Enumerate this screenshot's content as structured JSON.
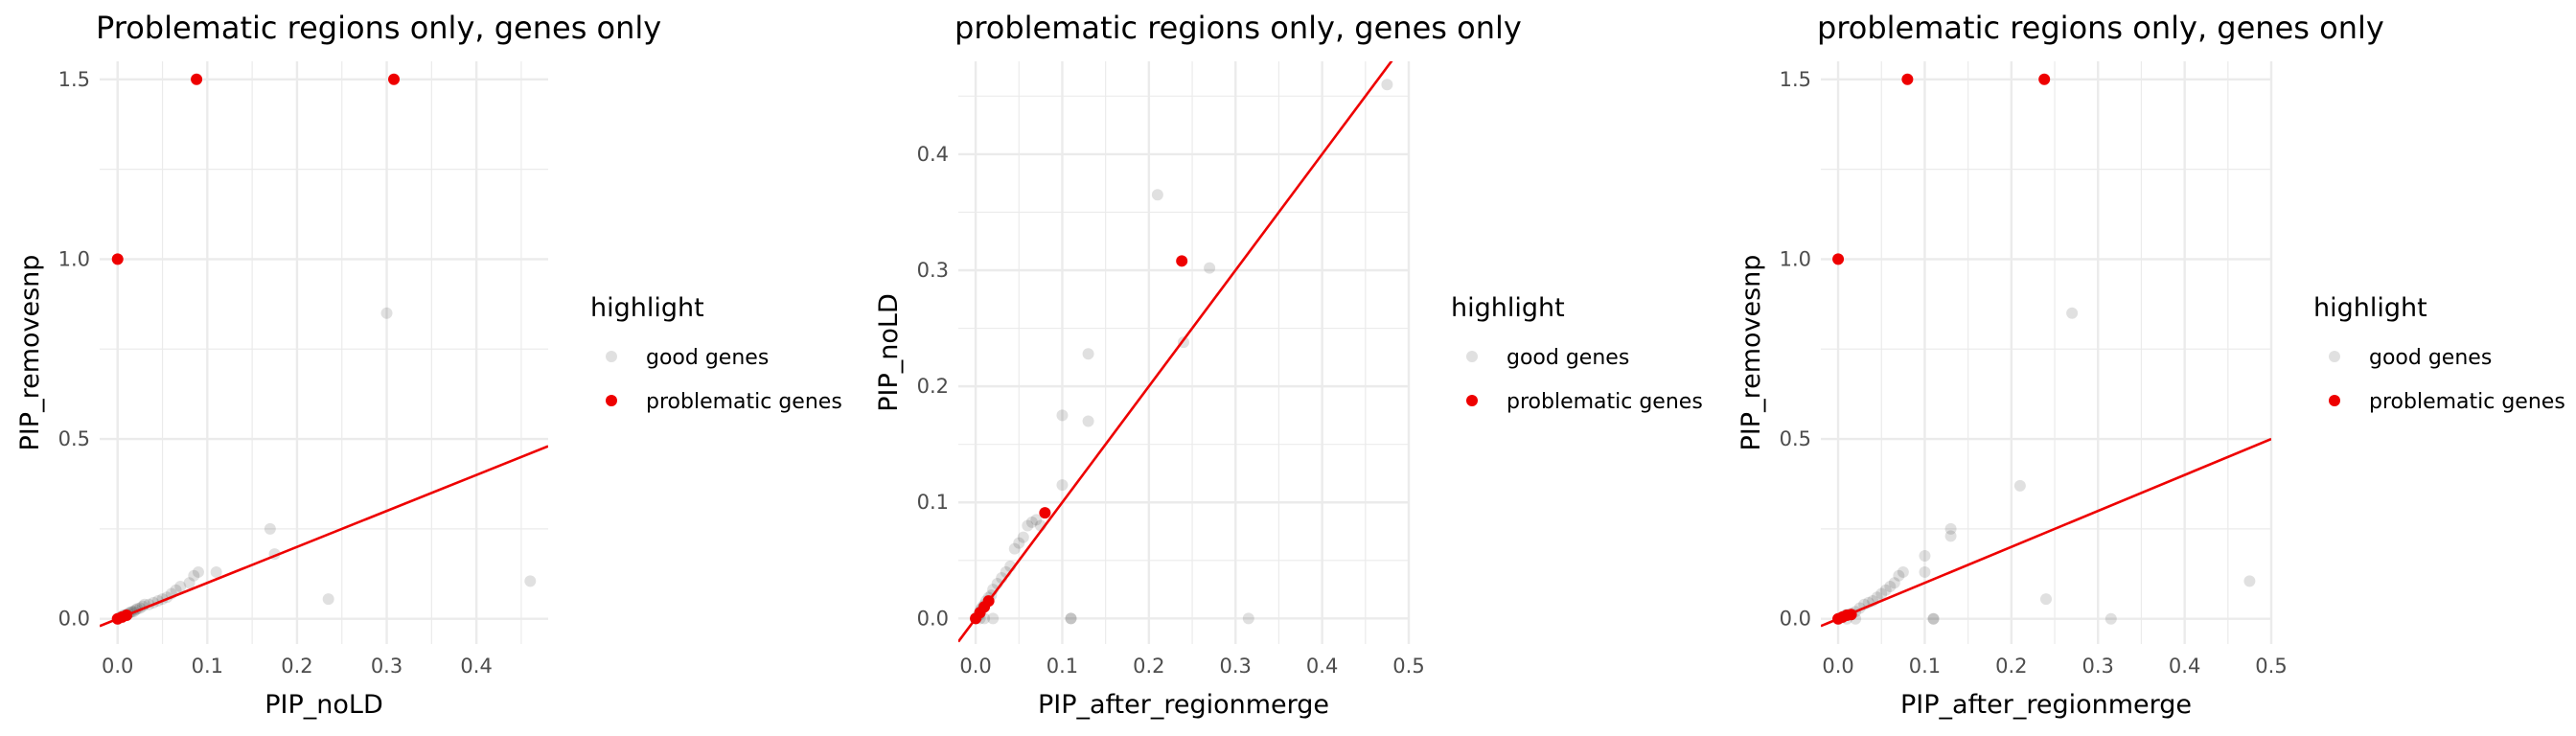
{
  "colors": {
    "good_genes": "#000000",
    "problematic_genes": "#ee0000",
    "reference_line": "#ee0000",
    "grid": "#ebebeb"
  },
  "chart_data": [
    {
      "type": "scatter",
      "title": "Problematic regions only, genes only",
      "xlabel": "PIP_noLD",
      "ylabel": "PIP_removesnp",
      "xlim": [
        -0.02,
        0.48
      ],
      "ylim": [
        -0.07,
        1.55
      ],
      "x_ticks": [
        0.0,
        0.1,
        0.2,
        0.3,
        0.4
      ],
      "y_ticks": [
        0.0,
        0.5,
        1.0,
        1.5
      ],
      "x_tick_labels": [
        "0.0",
        "0.1",
        "0.2",
        "0.3",
        "0.4"
      ],
      "y_tick_labels": [
        "0.0",
        "0.5",
        "1.0",
        "1.5"
      ],
      "grid": true,
      "legend": {
        "title": "highlight",
        "placement": "right",
        "items": [
          {
            "label": "good genes",
            "color": "#000000",
            "alpha": 0.12
          },
          {
            "label": "problematic genes",
            "color": "#ee0000",
            "alpha": 1
          }
        ]
      },
      "reference_line": {
        "slope": 1,
        "intercept": 0
      },
      "series": [
        {
          "name": "good genes",
          "points": [
            [
              0.0,
              0.0
            ],
            [
              0.002,
              0.003
            ],
            [
              0.004,
              0.005
            ],
            [
              0.006,
              0.01
            ],
            [
              0.008,
              0.01
            ],
            [
              0.01,
              0.012
            ],
            [
              0.012,
              0.015
            ],
            [
              0.014,
              0.018
            ],
            [
              0.016,
              0.02
            ],
            [
              0.018,
              0.02
            ],
            [
              0.02,
              0.025
            ],
            [
              0.022,
              0.028
            ],
            [
              0.025,
              0.03
            ],
            [
              0.028,
              0.035
            ],
            [
              0.03,
              0.04
            ],
            [
              0.035,
              0.04
            ],
            [
              0.04,
              0.045
            ],
            [
              0.045,
              0.05
            ],
            [
              0.05,
              0.055
            ],
            [
              0.055,
              0.06
            ],
            [
              0.06,
              0.07
            ],
            [
              0.065,
              0.08
            ],
            [
              0.07,
              0.09
            ],
            [
              0.08,
              0.1
            ],
            [
              0.085,
              0.12
            ],
            [
              0.09,
              0.13
            ],
            [
              0.11,
              0.13
            ],
            [
              0.17,
              0.25
            ],
            [
              0.175,
              0.18
            ],
            [
              0.235,
              0.055
            ],
            [
              0.3,
              0.85
            ],
            [
              0.46,
              0.105
            ]
          ]
        },
        {
          "name": "problematic genes",
          "points": [
            [
              0.0,
              1.0
            ],
            [
              0.088,
              1.5
            ],
            [
              0.308,
              1.5
            ],
            [
              0.0,
              0.0
            ],
            [
              0.005,
              0.005
            ],
            [
              0.01,
              0.01
            ]
          ]
        }
      ]
    },
    {
      "type": "scatter",
      "title": "problematic regions only, genes only",
      "xlabel": "PIP_after_regionmerge",
      "ylabel": "PIP_noLD",
      "xlim": [
        -0.02,
        0.5
      ],
      "ylim": [
        -0.022,
        0.48
      ],
      "x_ticks": [
        0.0,
        0.1,
        0.2,
        0.3,
        0.4,
        0.5
      ],
      "y_ticks": [
        0.0,
        0.1,
        0.2,
        0.3,
        0.4
      ],
      "x_tick_labels": [
        "0.0",
        "0.1",
        "0.2",
        "0.3",
        "0.4",
        "0.5"
      ],
      "y_tick_labels": [
        "0.0",
        "0.1",
        "0.2",
        "0.3",
        "0.4"
      ],
      "grid": true,
      "legend": {
        "title": "highlight",
        "placement": "right",
        "items": [
          {
            "label": "good genes",
            "color": "#000000",
            "alpha": 0.12
          },
          {
            "label": "problematic genes",
            "color": "#ee0000",
            "alpha": 1
          }
        ]
      },
      "reference_line": {
        "slope": 1,
        "intercept": 0
      },
      "series": [
        {
          "name": "good genes",
          "points": [
            [
              0.0,
              0.0
            ],
            [
              0.002,
              0.002
            ],
            [
              0.004,
              0.003
            ],
            [
              0.005,
              0.006
            ],
            [
              0.006,
              0.008
            ],
            [
              0.008,
              0.01
            ],
            [
              0.01,
              0.012
            ],
            [
              0.012,
              0.015
            ],
            [
              0.015,
              0.018
            ],
            [
              0.018,
              0.02
            ],
            [
              0.02,
              0.025
            ],
            [
              0.025,
              0.03
            ],
            [
              0.03,
              0.035
            ],
            [
              0.035,
              0.04
            ],
            [
              0.04,
              0.045
            ],
            [
              0.045,
              0.06
            ],
            [
              0.05,
              0.065
            ],
            [
              0.055,
              0.07
            ],
            [
              0.06,
              0.08
            ],
            [
              0.065,
              0.083
            ],
            [
              0.07,
              0.085
            ],
            [
              0.075,
              0.08
            ],
            [
              0.1,
              0.115
            ],
            [
              0.1,
              0.175
            ],
            [
              0.13,
              0.17
            ],
            [
              0.13,
              0.228
            ],
            [
              0.21,
              0.365
            ],
            [
              0.24,
              0.238
            ],
            [
              0.27,
              0.302
            ],
            [
              0.11,
              0.0
            ],
            [
              0.11,
              0.0
            ],
            [
              0.005,
              0.0
            ],
            [
              0.01,
              0.0
            ],
            [
              0.02,
              0.0
            ],
            [
              0.315,
              0.0
            ],
            [
              0.475,
              0.46
            ]
          ]
        },
        {
          "name": "problematic genes",
          "points": [
            [
              0.0,
              0.0
            ],
            [
              0.005,
              0.005
            ],
            [
              0.01,
              0.01
            ],
            [
              0.015,
              0.015
            ],
            [
              0.08,
              0.091
            ],
            [
              0.238,
              0.308
            ]
          ]
        }
      ]
    },
    {
      "type": "scatter",
      "title": "problematic regions only, genes only",
      "xlabel": "PIP_after_regionmerge",
      "ylabel": "PIP_removesnp",
      "xlim": [
        -0.02,
        0.5
      ],
      "ylim": [
        -0.07,
        1.55
      ],
      "x_ticks": [
        0.0,
        0.1,
        0.2,
        0.3,
        0.4,
        0.5
      ],
      "y_ticks": [
        0.0,
        0.5,
        1.0,
        1.5
      ],
      "x_tick_labels": [
        "0.0",
        "0.1",
        "0.2",
        "0.3",
        "0.4",
        "0.5"
      ],
      "y_tick_labels": [
        "0.0",
        "0.5",
        "1.0",
        "1.5"
      ],
      "grid": true,
      "legend": {
        "title": "highlight",
        "placement": "right",
        "items": [
          {
            "label": "good genes",
            "color": "#000000",
            "alpha": 0.12
          },
          {
            "label": "problematic genes",
            "color": "#ee0000",
            "alpha": 1
          }
        ]
      },
      "reference_line": {
        "slope": 1,
        "intercept": 0
      },
      "series": [
        {
          "name": "good genes",
          "points": [
            [
              0.0,
              0.0
            ],
            [
              0.003,
              0.003
            ],
            [
              0.005,
              0.005
            ],
            [
              0.008,
              0.01
            ],
            [
              0.01,
              0.012
            ],
            [
              0.015,
              0.015
            ],
            [
              0.02,
              0.02
            ],
            [
              0.025,
              0.03
            ],
            [
              0.03,
              0.04
            ],
            [
              0.035,
              0.045
            ],
            [
              0.04,
              0.05
            ],
            [
              0.045,
              0.06
            ],
            [
              0.05,
              0.07
            ],
            [
              0.055,
              0.08
            ],
            [
              0.06,
              0.09
            ],
            [
              0.065,
              0.1
            ],
            [
              0.07,
              0.12
            ],
            [
              0.075,
              0.13
            ],
            [
              0.1,
              0.175
            ],
            [
              0.1,
              0.13
            ],
            [
              0.13,
              0.25
            ],
            [
              0.13,
              0.23
            ],
            [
              0.21,
              0.37
            ],
            [
              0.24,
              0.055
            ],
            [
              0.27,
              0.85
            ],
            [
              0.11,
              0.0
            ],
            [
              0.11,
              0.0
            ],
            [
              0.315,
              0.0
            ],
            [
              0.475,
              0.105
            ],
            [
              0.02,
              0.0
            ],
            [
              0.01,
              0.0
            ]
          ]
        },
        {
          "name": "problematic genes",
          "points": [
            [
              0.0,
              1.0
            ],
            [
              0.08,
              1.5
            ],
            [
              0.238,
              1.5
            ],
            [
              0.0,
              0.0
            ],
            [
              0.005,
              0.005
            ],
            [
              0.01,
              0.01
            ],
            [
              0.015,
              0.012
            ]
          ]
        }
      ]
    }
  ]
}
